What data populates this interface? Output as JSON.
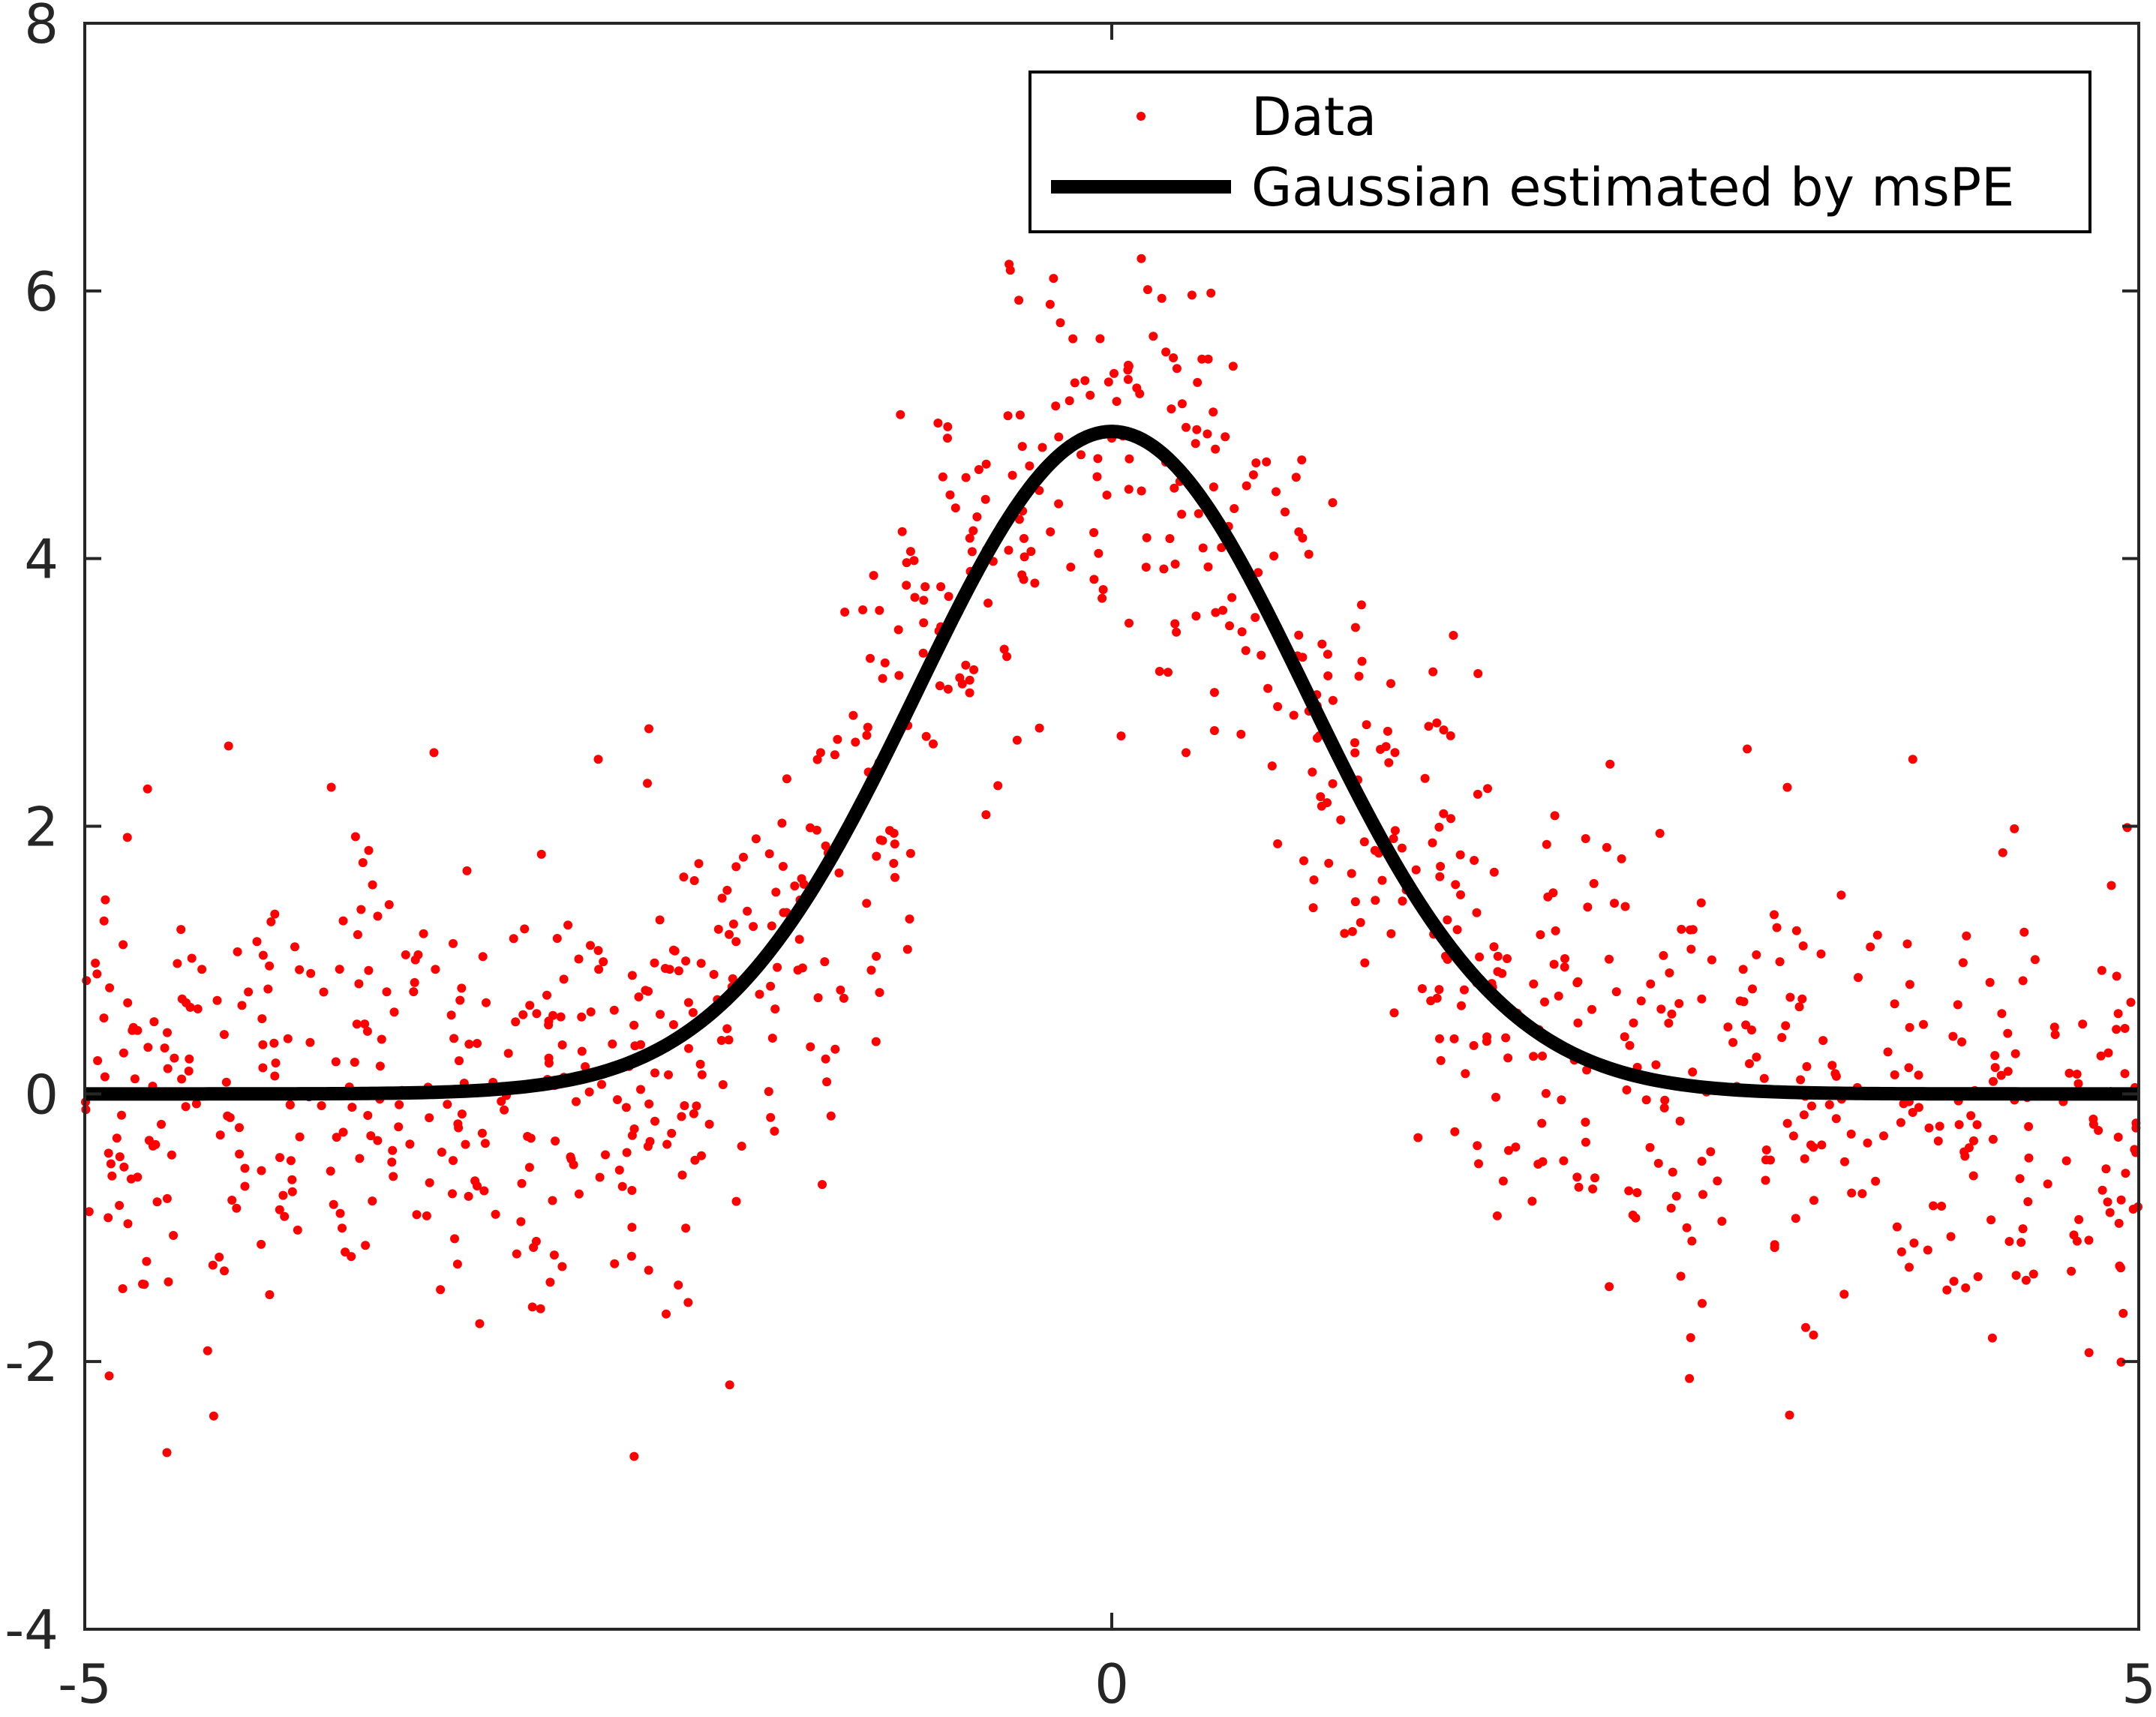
{
  "chart_data": {
    "type": "scatter",
    "title": "",
    "xlabel": "",
    "ylabel": "",
    "xlim": [
      -5,
      5
    ],
    "ylim": [
      -4,
      8
    ],
    "xticks": [
      -5,
      0,
      5
    ],
    "yticks": [
      -4,
      -2,
      0,
      2,
      4,
      6,
      8
    ],
    "xtick_labels": [
      "-5",
      "0",
      "5"
    ],
    "ytick_labels": [
      "-4",
      "-2",
      "0",
      "2",
      "4",
      "6",
      "8"
    ],
    "grid": false,
    "legend_position": "top-right",
    "series": [
      {
        "name": "Data",
        "kind": "scatter",
        "color": "#ff0000",
        "marker": "dot",
        "generator": {
          "count": 1000,
          "x_range": [
            -5,
            5
          ],
          "distribution": "uniform",
          "model": "gaussian-plus-noise",
          "noise_std": 0.9
        },
        "x": [
          -4.9,
          -4.6,
          -4.3,
          -4.1,
          -3.9,
          -3.6,
          -3.3,
          -3.0,
          -2.8,
          -2.5,
          -2.2,
          -1.9,
          -1.6,
          -1.3,
          -1.0,
          -0.8,
          -0.5,
          -0.3,
          0.0,
          0.3,
          0.5,
          0.8,
          1.0,
          1.3,
          1.6,
          1.9,
          2.2,
          2.5,
          2.8,
          3.0,
          3.3,
          3.6,
          3.9,
          4.1,
          4.4,
          4.7,
          4.9
        ],
        "y": [
          1.45,
          -2.68,
          2.6,
          -1.5,
          0.9,
          -0.8,
          2.55,
          -0.9,
          0.6,
          2.5,
          1.3,
          0.4,
          1.7,
          3.6,
          3.8,
          4.9,
          6.2,
          5.9,
          4.9,
          5.5,
          3.0,
          4.5,
          2.9,
          1.8,
          1.7,
          0.9,
          -0.5,
          1.4,
          -1.0,
          0.5,
          -2.4,
          -0.3,
          2.5,
          -1.4,
          0.3,
          -1.1,
          0.6
        ]
      },
      {
        "name": "Gaussian estimated by msPE",
        "kind": "line",
        "color": "#000000",
        "function": {
          "form": "gaussian",
          "amplitude": 4.95,
          "mean": 0.0,
          "sigma": 0.95,
          "x_range": [
            -5,
            5
          ],
          "samples": 400
        }
      }
    ]
  },
  "legend": {
    "items": [
      {
        "label": "Data"
      },
      {
        "label": "Gaussian estimated by msPE"
      }
    ]
  },
  "colors": {
    "data_marker": "#ff0000",
    "fit_line": "#000000",
    "axes": "#262626",
    "background": "#ffffff"
  }
}
